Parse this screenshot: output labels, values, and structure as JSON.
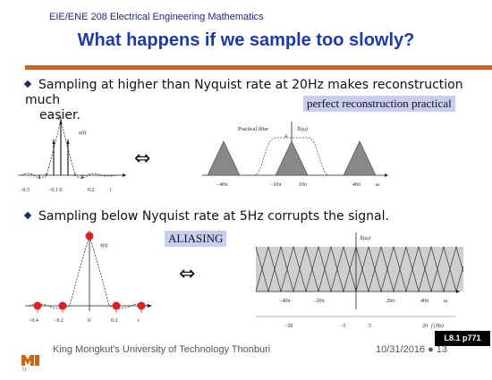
{
  "header": {
    "course": "EIE/ENE 208 Electrical Engineering Mathematics",
    "title": "What happens if we sample too slowly?"
  },
  "bullets": {
    "first_line": "Sampling at higher than Nyquist rate at 20Hz makes reconstruction much",
    "first_cont": "easier.",
    "second": "Sampling below Nyquist rate at 5Hz corrupts the signal."
  },
  "callouts": {
    "perfect": "perfect reconstruction practical",
    "aliasing": "ALIASING"
  },
  "arrows": {
    "equiv": "⇔"
  },
  "fig1": {
    "xt_label": "x(t)",
    "t_label": "t",
    "ticks": [
      "−0.3",
      "−0.1 0",
      "0.2"
    ],
    "peak": "1"
  },
  "fig2": {
    "filter_label": "Practical filter",
    "xw_label": "X̄(ω)",
    "peak": "4",
    "ticks": [
      "−40π",
      "−10π",
      "10π",
      "40π"
    ],
    "w_label": "ω"
  },
  "fig3": {
    "xt_label": "x̄(t)",
    "t_label": "t",
    "ticks": [
      "−0.4",
      "−0.2",
      "0",
      "0.2"
    ]
  },
  "fig4": {
    "xw_label": "X̄(ω)",
    "w_ticks": [
      "−40π",
      "−20π",
      "20π",
      "40π"
    ],
    "w_label": "ω",
    "f_ticks": [
      "−20",
      "−5",
      "5",
      "20"
    ],
    "f_label": "f (Hz)"
  },
  "footer": {
    "slide_ref": "L8.1 p771",
    "university": "King Mongkut's University of Technology Thonburi",
    "date": "10/31/2016 ● 13"
  },
  "colors": {
    "title": "#1f3aa3",
    "rule": "#c8651b",
    "callout_bg": "#c9cef0",
    "sample_dot": "#e02020"
  }
}
